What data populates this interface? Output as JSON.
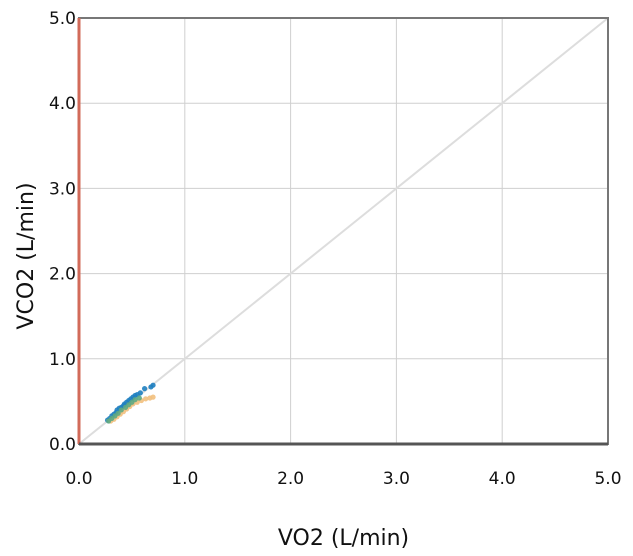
{
  "chart_data": {
    "type": "scatter",
    "title": "",
    "xlabel": "VO2 (L/min)",
    "ylabel": "VCO2 (L/min)",
    "xlim": [
      0,
      5
    ],
    "ylim": [
      0,
      5
    ],
    "x_ticks": [
      "0.0",
      "1.0",
      "2.0",
      "3.0",
      "4.0",
      "5.0"
    ],
    "y_ticks": [
      "0.0",
      "1.0",
      "2.0",
      "3.0",
      "4.0",
      "5.0"
    ],
    "grid": true,
    "reference_line": {
      "from": [
        0,
        0
      ],
      "to": [
        5,
        5
      ],
      "color": "#dddddd"
    },
    "legend": "none",
    "series": [
      {
        "color": "#1f7fc0",
        "points": [
          [
            0.27,
            0.28
          ],
          [
            0.29,
            0.3
          ],
          [
            0.31,
            0.33
          ],
          [
            0.33,
            0.35
          ],
          [
            0.35,
            0.37
          ],
          [
            0.36,
            0.4
          ],
          [
            0.38,
            0.42
          ],
          [
            0.4,
            0.43
          ],
          [
            0.42,
            0.45
          ],
          [
            0.43,
            0.47
          ],
          [
            0.45,
            0.49
          ],
          [
            0.47,
            0.51
          ],
          [
            0.49,
            0.53
          ],
          [
            0.51,
            0.55
          ],
          [
            0.53,
            0.57
          ],
          [
            0.55,
            0.58
          ],
          [
            0.58,
            0.6
          ],
          [
            0.62,
            0.65
          ],
          [
            0.68,
            0.67
          ],
          [
            0.7,
            0.69
          ]
        ]
      },
      {
        "color": "#f2c07e",
        "points": [
          [
            0.3,
            0.27
          ],
          [
            0.33,
            0.29
          ],
          [
            0.36,
            0.32
          ],
          [
            0.39,
            0.35
          ],
          [
            0.42,
            0.38
          ],
          [
            0.45,
            0.41
          ],
          [
            0.48,
            0.44
          ],
          [
            0.51,
            0.47
          ],
          [
            0.55,
            0.49
          ],
          [
            0.59,
            0.51
          ],
          [
            0.63,
            0.53
          ],
          [
            0.67,
            0.54
          ],
          [
            0.7,
            0.55
          ]
        ]
      },
      {
        "color": "#5da882",
        "points": [
          [
            0.28,
            0.27
          ],
          [
            0.31,
            0.3
          ],
          [
            0.34,
            0.33
          ],
          [
            0.37,
            0.36
          ],
          [
            0.4,
            0.4
          ],
          [
            0.44,
            0.43
          ],
          [
            0.47,
            0.46
          ],
          [
            0.5,
            0.49
          ],
          [
            0.53,
            0.52
          ],
          [
            0.57,
            0.54
          ]
        ]
      }
    ]
  }
}
